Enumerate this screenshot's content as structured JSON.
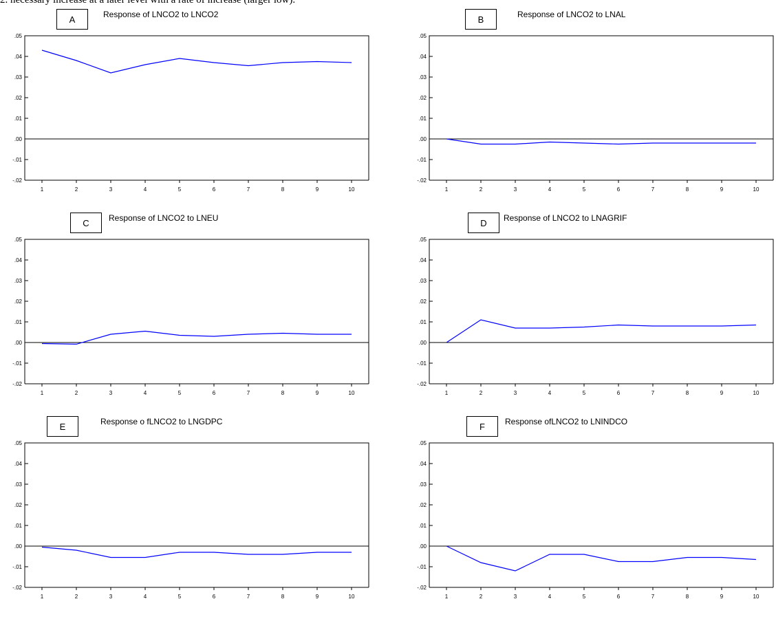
{
  "caption": "2. necessary increase at a later level with a rate of increase (larger low).",
  "chart_data": [
    {
      "type": "line",
      "panel": "A",
      "title": "Response of LNCO2 to LNCO2",
      "x": [
        1,
        2,
        3,
        4,
        5,
        6,
        7,
        8,
        9,
        10
      ],
      "series": [
        {
          "values": [
            0.043,
            0.038,
            0.032,
            0.036,
            0.039,
            0.037,
            0.0355,
            0.037,
            0.0375,
            0.037
          ]
        }
      ],
      "ylim": [
        -0.02,
        0.05
      ],
      "yticks": [
        ".05",
        ".04",
        ".03",
        ".02",
        ".01",
        ".00",
        "-.01",
        "-.02"
      ],
      "xticks": [
        "1",
        "2",
        "3",
        "4",
        "5",
        "6",
        "7",
        "8",
        "9",
        "10"
      ],
      "line_color": "#0000ff",
      "grid": false
    },
    {
      "type": "line",
      "panel": "B",
      "title": "Response of LNCO2 to LNAL",
      "x": [
        1,
        2,
        3,
        4,
        5,
        6,
        7,
        8,
        9,
        10
      ],
      "series": [
        {
          "values": [
            0.0,
            -0.0025,
            -0.0025,
            -0.0015,
            -0.002,
            -0.0025,
            -0.002,
            -0.002,
            -0.002,
            -0.002
          ]
        }
      ],
      "ylim": [
        -0.02,
        0.05
      ],
      "yticks": [
        ".05",
        ".04",
        ".03",
        ".02",
        ".01",
        ".00",
        "-.01",
        "-.02"
      ],
      "xticks": [
        "1",
        "2",
        "3",
        "4",
        "5",
        "6",
        "7",
        "8",
        "9",
        "10"
      ],
      "line_color": "#0000ff",
      "grid": false
    },
    {
      "type": "line",
      "panel": "C",
      "title": "Response of LNCO2 to LNEU",
      "x": [
        1,
        2,
        3,
        4,
        5,
        6,
        7,
        8,
        9,
        10
      ],
      "series": [
        {
          "values": [
            -0.0005,
            -0.0008,
            0.004,
            0.0055,
            0.0035,
            0.003,
            0.004,
            0.0045,
            0.004,
            0.004
          ]
        }
      ],
      "ylim": [
        -0.02,
        0.05
      ],
      "yticks": [
        ".05",
        ".04",
        ".03",
        ".02",
        ".01",
        ".00",
        "-.01",
        "-.02"
      ],
      "xticks": [
        "1",
        "2",
        "3",
        "4",
        "5",
        "6",
        "7",
        "8",
        "9",
        "10"
      ],
      "line_color": "#0000ff",
      "grid": false
    },
    {
      "type": "line",
      "panel": "D",
      "title": "Response of LNCO2 to LNAGRIF",
      "x": [
        1,
        2,
        3,
        4,
        5,
        6,
        7,
        8,
        9,
        10
      ],
      "series": [
        {
          "values": [
            0.0,
            0.011,
            0.007,
            0.007,
            0.0075,
            0.0085,
            0.008,
            0.008,
            0.008,
            0.0085
          ]
        }
      ],
      "ylim": [
        -0.02,
        0.05
      ],
      "yticks": [
        ".05",
        ".04",
        ".03",
        ".02",
        ".01",
        ".00",
        "-.01",
        "-.02"
      ],
      "xticks": [
        "1",
        "2",
        "3",
        "4",
        "5",
        "6",
        "7",
        "8",
        "9",
        "10"
      ],
      "line_color": "#0000ff",
      "grid": false
    },
    {
      "type": "line",
      "panel": "E",
      "title": "Response o fLNCO2 to LNGDPC",
      "x": [
        1,
        2,
        3,
        4,
        5,
        6,
        7,
        8,
        9,
        10
      ],
      "series": [
        {
          "values": [
            -0.0005,
            -0.002,
            -0.0055,
            -0.0055,
            -0.003,
            -0.003,
            -0.004,
            -0.004,
            -0.003,
            -0.003
          ]
        }
      ],
      "ylim": [
        -0.02,
        0.05
      ],
      "yticks": [
        ".05",
        ".04",
        ".03",
        ".02",
        ".01",
        ".00",
        "-.01",
        "-.02"
      ],
      "xticks": [
        "1",
        "2",
        "3",
        "4",
        "5",
        "6",
        "7",
        "8",
        "9",
        "10"
      ],
      "line_color": "#0000ff",
      "grid": false
    },
    {
      "type": "line",
      "panel": "F",
      "title": "Response ofLNCO2 to LNINDCO",
      "x": [
        1,
        2,
        3,
        4,
        5,
        6,
        7,
        8,
        9,
        10
      ],
      "series": [
        {
          "values": [
            0.0,
            -0.008,
            -0.012,
            -0.004,
            -0.004,
            -0.0075,
            -0.0075,
            -0.0055,
            -0.0055,
            -0.0065
          ]
        }
      ],
      "ylim": [
        -0.02,
        0.05
      ],
      "yticks": [
        ".05",
        ".04",
        ".03",
        ".02",
        ".01",
        ".00",
        "-.01",
        "-.02"
      ],
      "xticks": [
        "1",
        "2",
        "3",
        "4",
        "5",
        "6",
        "7",
        "8",
        "9",
        "10"
      ],
      "line_color": "#0000ff",
      "grid": false
    }
  ]
}
